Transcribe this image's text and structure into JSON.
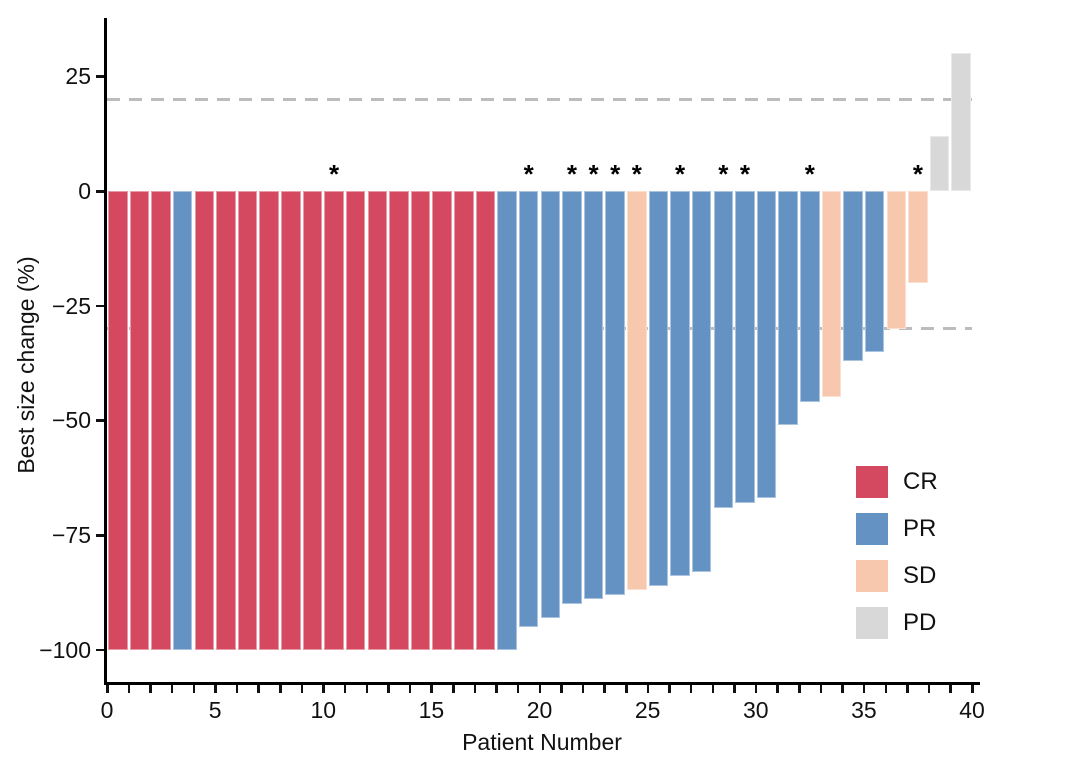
{
  "figure": {
    "background": "#FFFFFF"
  },
  "chart_data": {
    "type": "bar",
    "subtype": "waterfall",
    "title": "",
    "xlabel": "Patient Number",
    "ylabel": "Best size change (%)",
    "x_range": [
      0,
      40
    ],
    "x_ticks_labeled": [
      0,
      5,
      10,
      15,
      20,
      25,
      30,
      35,
      40
    ],
    "x_minor_tick_every": 1,
    "y_ticks": [
      25,
      0,
      -25,
      -50,
      -75,
      -100
    ],
    "y_tick_labels": [
      "25",
      "0",
      "−25",
      "−50",
      "−75",
      "−100"
    ],
    "y_range": [
      -107,
      37
    ],
    "grid": false,
    "reference_lines": [
      20,
      -30
    ],
    "reference_line_style": "dashed",
    "reference_line_color": "#BCBCBC",
    "annotation_symbol": "*",
    "colors": {
      "CR": "#D4495F",
      "PR": "#6492C3",
      "SD": "#F7C7AE",
      "PD": "#D8D8D8"
    },
    "legend": {
      "position": "right-middle",
      "items": [
        {
          "label": "CR",
          "color": "#D4495F"
        },
        {
          "label": "PR",
          "color": "#6492C3"
        },
        {
          "label": "SD",
          "color": "#F7C7AE"
        },
        {
          "label": "PD",
          "color": "#D8D8D8"
        }
      ]
    },
    "patients": [
      {
        "n": 1,
        "value": -100,
        "response": "CR",
        "star": false
      },
      {
        "n": 2,
        "value": -100,
        "response": "CR",
        "star": false
      },
      {
        "n": 3,
        "value": -100,
        "response": "CR",
        "star": false
      },
      {
        "n": 4,
        "value": -100,
        "response": "PR",
        "star": false
      },
      {
        "n": 5,
        "value": -100,
        "response": "CR",
        "star": false
      },
      {
        "n": 6,
        "value": -100,
        "response": "CR",
        "star": false
      },
      {
        "n": 7,
        "value": -100,
        "response": "CR",
        "star": false
      },
      {
        "n": 8,
        "value": -100,
        "response": "CR",
        "star": false
      },
      {
        "n": 9,
        "value": -100,
        "response": "CR",
        "star": false
      },
      {
        "n": 10,
        "value": -100,
        "response": "CR",
        "star": false
      },
      {
        "n": 11,
        "value": -100,
        "response": "CR",
        "star": true
      },
      {
        "n": 12,
        "value": -100,
        "response": "CR",
        "star": false
      },
      {
        "n": 13,
        "value": -100,
        "response": "CR",
        "star": false
      },
      {
        "n": 14,
        "value": -100,
        "response": "CR",
        "star": false
      },
      {
        "n": 15,
        "value": -100,
        "response": "CR",
        "star": false
      },
      {
        "n": 16,
        "value": -100,
        "response": "CR",
        "star": false
      },
      {
        "n": 17,
        "value": -100,
        "response": "CR",
        "star": false
      },
      {
        "n": 18,
        "value": -100,
        "response": "CR",
        "star": false
      },
      {
        "n": 19,
        "value": -100,
        "response": "PR",
        "star": false
      },
      {
        "n": 20,
        "value": -95,
        "response": "PR",
        "star": true
      },
      {
        "n": 21,
        "value": -93,
        "response": "PR",
        "star": false
      },
      {
        "n": 22,
        "value": -90,
        "response": "PR",
        "star": true
      },
      {
        "n": 23,
        "value": -89,
        "response": "PR",
        "star": true
      },
      {
        "n": 24,
        "value": -88,
        "response": "PR",
        "star": true
      },
      {
        "n": 25,
        "value": -87,
        "response": "SD",
        "star": true
      },
      {
        "n": 26,
        "value": -86,
        "response": "PR",
        "star": false
      },
      {
        "n": 27,
        "value": -84,
        "response": "PR",
        "star": true
      },
      {
        "n": 28,
        "value": -83,
        "response": "PR",
        "star": false
      },
      {
        "n": 29,
        "value": -69,
        "response": "PR",
        "star": true
      },
      {
        "n": 30,
        "value": -68,
        "response": "PR",
        "star": true
      },
      {
        "n": 31,
        "value": -67,
        "response": "PR",
        "star": false
      },
      {
        "n": 32,
        "value": -51,
        "response": "PR",
        "star": false
      },
      {
        "n": 33,
        "value": -46,
        "response": "PR",
        "star": true
      },
      {
        "n": 34,
        "value": -45,
        "response": "SD",
        "star": false
      },
      {
        "n": 35,
        "value": -37,
        "response": "PR",
        "star": false
      },
      {
        "n": 36,
        "value": -35,
        "response": "PR",
        "star": false
      },
      {
        "n": 37,
        "value": -30,
        "response": "SD",
        "star": false
      },
      {
        "n": 38,
        "value": -20,
        "response": "SD",
        "star": true
      },
      {
        "n": 39,
        "value": 12,
        "response": "PD",
        "star": false
      },
      {
        "n": 40,
        "value": 30,
        "response": "PD",
        "star": false
      }
    ]
  }
}
